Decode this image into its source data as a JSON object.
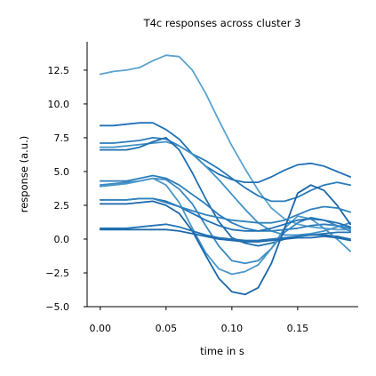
{
  "chart_data": {
    "type": "line",
    "title": "T4c responses across cluster 3",
    "xlabel": "time in s",
    "ylabel": "response (a.u.)",
    "xlim": [
      -0.01,
      0.196
    ],
    "ylim": [
      -5.0,
      14.6
    ],
    "xticks": [
      0.0,
      0.05,
      0.1,
      0.15
    ],
    "xtick_labels": [
      "0.00",
      "0.05",
      "0.10",
      "0.15"
    ],
    "yticks": [
      -5.0,
      -2.5,
      0.0,
      2.5,
      5.0,
      7.5,
      10.0,
      12.5
    ],
    "ytick_labels": [
      "−5.0",
      "−2.5",
      "0.0",
      "2.5",
      "5.0",
      "7.5",
      "10.0",
      "12.5"
    ],
    "grid": false,
    "x": [
      0.0,
      0.01,
      0.02,
      0.03,
      0.04,
      0.05,
      0.06,
      0.07,
      0.08,
      0.09,
      0.1,
      0.11,
      0.12,
      0.13,
      0.14,
      0.15,
      0.16,
      0.17,
      0.18,
      0.19
    ],
    "series": [
      {
        "color": "#5ba3cf",
        "values": [
          12.2,
          12.4,
          12.5,
          12.7,
          13.2,
          13.6,
          13.5,
          12.5,
          10.8,
          8.8,
          6.9,
          5.2,
          3.6,
          2.3,
          1.5,
          1.1,
          0.9,
          0.8,
          0.7,
          0.7
        ]
      },
      {
        "color": "#2171b5",
        "values": [
          8.4,
          8.4,
          8.5,
          8.6,
          8.6,
          8.1,
          7.4,
          6.3,
          5.4,
          4.8,
          4.4,
          4.2,
          4.2,
          4.6,
          5.1,
          5.5,
          5.6,
          5.4,
          5.0,
          4.6
        ]
      },
      {
        "color": "#2b7bba",
        "values": [
          7.1,
          7.1,
          7.2,
          7.3,
          7.5,
          7.4,
          6.9,
          6.3,
          5.8,
          5.2,
          4.5,
          3.8,
          3.2,
          2.8,
          2.8,
          3.1,
          3.6,
          4.0,
          4.2,
          4.0
        ]
      },
      {
        "color": "#4292c6",
        "values": [
          6.8,
          6.8,
          6.9,
          7.0,
          7.1,
          7.2,
          6.9,
          6.3,
          5.4,
          4.4,
          3.3,
          2.2,
          1.2,
          0.6,
          0.3,
          0.3,
          0.4,
          0.6,
          0.9,
          1.2
        ]
      },
      {
        "color": "#1f6fb0",
        "values": [
          6.6,
          6.6,
          6.6,
          6.8,
          7.2,
          7.5,
          6.6,
          4.9,
          3.0,
          1.3,
          0.1,
          -0.3,
          -0.5,
          -0.3,
          0.0,
          0.2,
          0.3,
          0.3,
          0.2,
          0.0
        ]
      },
      {
        "color": "#2d7dbb",
        "values": [
          4.3,
          4.3,
          4.3,
          4.5,
          4.7,
          4.5,
          4.0,
          3.3,
          2.6,
          1.8,
          1.2,
          0.8,
          0.6,
          0.6,
          0.7,
          0.8,
          1.0,
          1.1,
          1.0,
          0.8
        ]
      },
      {
        "color": "#3a89c2",
        "values": [
          4.0,
          4.1,
          4.2,
          4.3,
          4.5,
          4.4,
          3.7,
          2.6,
          1.0,
          -0.5,
          -1.6,
          -1.8,
          -1.6,
          -0.7,
          0.5,
          1.2,
          1.6,
          1.4,
          1.0,
          0.6
        ]
      },
      {
        "color": "#4a97c9",
        "values": [
          3.9,
          4.0,
          4.1,
          4.3,
          4.5,
          4.0,
          2.7,
          0.8,
          -1.0,
          -2.2,
          -2.6,
          -2.4,
          -1.9,
          -0.7,
          0.8,
          1.7,
          1.5,
          0.8,
          0.0,
          -0.9
        ]
      },
      {
        "color": "#2070b4",
        "values": [
          2.9,
          2.9,
          2.9,
          3.0,
          3.0,
          2.8,
          2.4,
          1.9,
          1.4,
          1.0,
          0.7,
          0.6,
          0.6,
          0.8,
          1.1,
          1.4,
          1.5,
          1.4,
          1.2,
          0.9
        ]
      },
      {
        "color": "#1c66a8",
        "values": [
          2.6,
          2.6,
          2.6,
          2.7,
          2.8,
          2.5,
          1.9,
          0.6,
          -1.2,
          -2.9,
          -3.9,
          -4.1,
          -3.6,
          -1.8,
          0.8,
          3.4,
          4.0,
          3.6,
          2.5,
          1.1
        ]
      },
      {
        "color": "#3282be",
        "values": [
          2.9,
          2.9,
          2.9,
          3.0,
          3.0,
          2.7,
          2.4,
          2.1,
          1.8,
          1.6,
          1.4,
          1.3,
          1.2,
          1.2,
          1.4,
          1.8,
          2.2,
          2.4,
          2.3,
          2.0
        ]
      },
      {
        "color": "#2574b6",
        "values": [
          0.8,
          0.8,
          0.8,
          0.9,
          1.0,
          1.1,
          0.9,
          0.6,
          0.3,
          0.1,
          0.0,
          -0.1,
          -0.1,
          0.0,
          0.1,
          0.2,
          0.3,
          0.4,
          0.5,
          0.5
        ]
      },
      {
        "color": "#1f6aac",
        "values": [
          0.7,
          0.7,
          0.7,
          0.7,
          0.7,
          0.7,
          0.6,
          0.4,
          0.2,
          0.0,
          -0.1,
          -0.2,
          -0.2,
          -0.1,
          0.0,
          0.1,
          0.1,
          0.2,
          0.1,
          -0.1
        ]
      }
    ]
  }
}
